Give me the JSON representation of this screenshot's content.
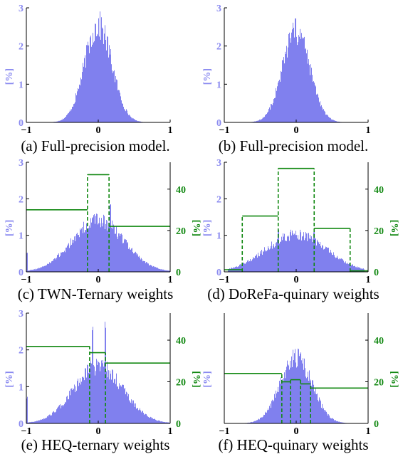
{
  "colors": {
    "histogram": "#8080ee",
    "histogram_label": "#8a8af0",
    "quant": "#118811",
    "axis": "#000000"
  },
  "chart_data": [
    {
      "type": "bar",
      "panel": "a",
      "caption": "(a) Full-precision model.",
      "ylabel": "[%]",
      "xlim": [
        -1,
        1
      ],
      "ylim": [
        0,
        3
      ],
      "x_ticks": [
        "−1",
        "0",
        "1"
      ],
      "y_ticks": [
        "0",
        "1",
        "2",
        "3"
      ],
      "histogram": {
        "center": 0.0,
        "sigma": 0.19,
        "peak": 2.62,
        "min_x": -0.95,
        "max_x": 0.95
      }
    },
    {
      "type": "bar",
      "panel": "b",
      "caption": "(b) Full-precision model.",
      "ylabel": "[%]",
      "xlim": [
        -1,
        1
      ],
      "ylim": [
        0,
        3
      ],
      "x_ticks": [
        "−1",
        "0",
        "1"
      ],
      "y_ticks": [
        "0",
        "1",
        "2",
        "3"
      ],
      "histogram": {
        "center": 0.0,
        "sigma": 0.19,
        "peak": 2.45,
        "min_x": -0.95,
        "max_x": 0.95
      }
    },
    {
      "type": "bar",
      "panel": "c",
      "caption": "(c) TWN-Ternary weights",
      "ylabel": "[%]",
      "y2label": "[%]",
      "xlim": [
        -1,
        1
      ],
      "ylim": [
        0,
        3
      ],
      "y2lim": [
        0,
        53
      ],
      "x_ticks": [
        "−1",
        "0",
        "1"
      ],
      "y_ticks": [
        "0",
        "1",
        "2",
        "3"
      ],
      "y2_ticks": [
        "0",
        "20",
        "40"
      ],
      "histogram": {
        "center": 0.0,
        "sigma": 0.36,
        "peak": 1.45,
        "min_x": -1.0,
        "max_x": 1.0,
        "spikes": [
          [
            -0.99,
            0.55
          ],
          [
            0.17,
            1.95
          ]
        ]
      },
      "quantization": {
        "boundaries": [
          -0.15,
          0.15
        ],
        "levels": [
          30,
          47,
          22
        ]
      }
    },
    {
      "type": "bar",
      "panel": "d",
      "caption": "(d) DoReFa-quinary weights",
      "ylabel": "[%]",
      "y2label": "[%]",
      "xlim": [
        -1,
        1
      ],
      "ylim": [
        0,
        3
      ],
      "y2lim": [
        0,
        53
      ],
      "x_ticks": [
        "−1",
        "0",
        "1"
      ],
      "y_ticks": [
        "0",
        "1",
        "2",
        "3"
      ],
      "y2_ticks": [
        "0",
        "20",
        "40"
      ],
      "histogram": {
        "center": 0.0,
        "sigma": 0.42,
        "peak": 1.05,
        "min_x": -0.95,
        "max_x": 0.95,
        "spikes": [
          [
            -0.25,
            1.25
          ],
          [
            0.25,
            1.2
          ]
        ]
      },
      "quantization": {
        "boundaries": [
          -0.75,
          -0.25,
          0.25,
          0.75
        ],
        "levels": [
          1,
          27,
          50,
          21,
          0.5
        ]
      }
    },
    {
      "type": "bar",
      "panel": "e",
      "caption": "(e) HEQ-ternary weights",
      "ylabel": "[%]",
      "y2label": "[%]",
      "xlim": [
        -1,
        1
      ],
      "ylim": [
        0,
        3
      ],
      "y2lim": [
        0,
        53
      ],
      "x_ticks": [
        "−1",
        "0",
        "1"
      ],
      "y_ticks": [
        "0",
        "1",
        "2",
        "3"
      ],
      "y2_ticks": [
        "0",
        "20",
        "40"
      ],
      "histogram": {
        "center": 0.0,
        "sigma": 0.34,
        "peak": 1.6,
        "min_x": -1.0,
        "max_x": 1.0,
        "spikes": [
          [
            -0.99,
            0.75
          ],
          [
            -0.08,
            2.7
          ],
          [
            0.1,
            2.8
          ]
        ]
      },
      "quantization": {
        "boundaries": [
          -0.12,
          0.1
        ],
        "levels": [
          37,
          34,
          29
        ]
      }
    },
    {
      "type": "bar",
      "panel": "f",
      "caption": "(f) HEQ-quinary weights",
      "ylabel": "[%]",
      "y2label": "[%]",
      "xlim": [
        -1,
        1
      ],
      "ylim": [
        0,
        3
      ],
      "y2lim": [
        0,
        53
      ],
      "x_ticks": [
        "−1",
        "0",
        "1"
      ],
      "y_ticks": [],
      "y2_ticks": [
        "0",
        "20",
        "40"
      ],
      "histogram": {
        "center": 0.0,
        "sigma": 0.22,
        "peak": 1.85,
        "min_x": -0.9,
        "max_x": 0.9,
        "spikes": [
          [
            0.03,
            2.1
          ]
        ]
      },
      "quantization": {
        "boundaries": [
          -0.2,
          -0.08,
          0.06,
          0.2
        ],
        "levels": [
          24,
          20,
          21,
          19,
          17
        ]
      }
    }
  ]
}
